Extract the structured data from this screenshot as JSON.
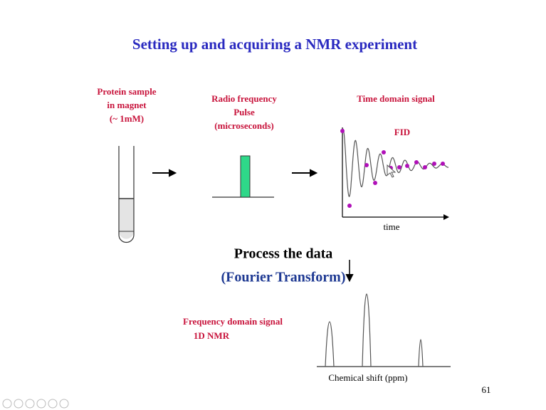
{
  "title": "Setting up and acquiring a NMR experiment",
  "sample": {
    "lines": [
      "Protein sample",
      "in magnet",
      "(~ 1mM)"
    ]
  },
  "pulse": {
    "lines": [
      "Radio frequency",
      "Pulse",
      "(microseconds)"
    ]
  },
  "time_domain": {
    "title": "Time domain signal",
    "fid": "FID",
    "axis": "time"
  },
  "process": {
    "line1": "Process the data",
    "line2": "(Fourier Transform)"
  },
  "frequency_domain": {
    "lines": [
      "Frequency domain signal",
      "1D NMR"
    ],
    "axis": "Chemical shift (ppm)"
  },
  "page_number": "61"
}
